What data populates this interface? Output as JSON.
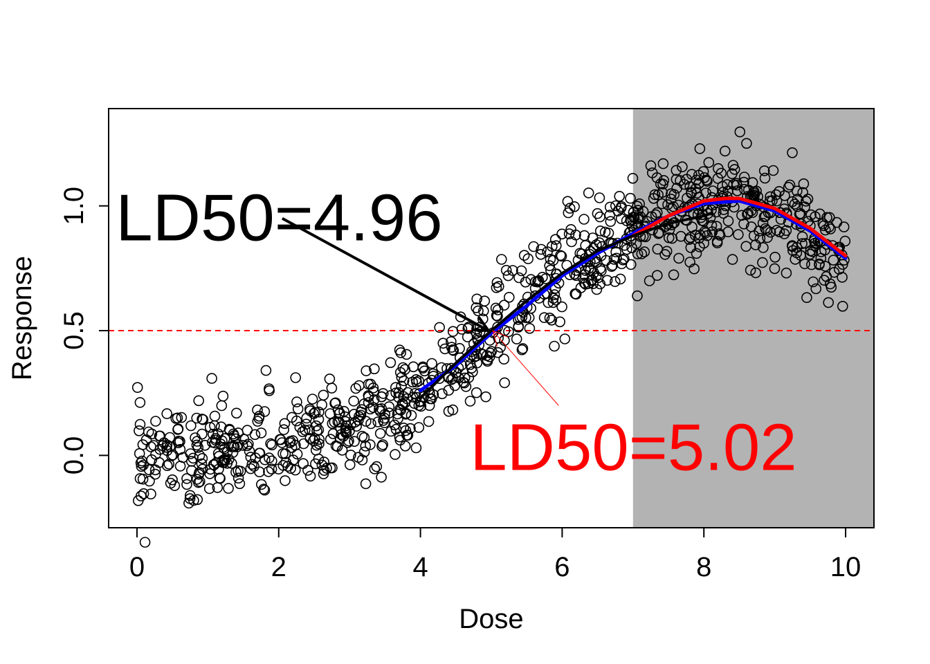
{
  "chart_data": {
    "type": "scatter",
    "title": "",
    "xlabel": "Dose",
    "ylabel": "Response",
    "xlim": [
      -0.4,
      10.4
    ],
    "ylim": [
      -0.29,
      1.39
    ],
    "x_ticks": [
      0,
      2,
      4,
      6,
      8,
      10
    ],
    "x_tick_labels": [
      "0",
      "2",
      "4",
      "6",
      "8",
      "10"
    ],
    "y_ticks": [
      0.0,
      0.5,
      1.0
    ],
    "y_tick_labels": [
      "0.0",
      "0.5",
      "1.0"
    ],
    "grid": false,
    "shaded_region": {
      "x_from": 7,
      "x_to": 10.4,
      "color": "#b3b3b3"
    },
    "reference_line": {
      "y": 0.5,
      "color": "#ff0000",
      "style": "dashed"
    },
    "scatter_points": {
      "description_count": 1000,
      "x_range": [
        0,
        10
      ],
      "y_pattern": [
        [
          0,
          0.0
        ],
        [
          1,
          0.0
        ],
        [
          2,
          0.03
        ],
        [
          3,
          0.1
        ],
        [
          4,
          0.22
        ],
        [
          5,
          0.5
        ],
        [
          6,
          0.75
        ],
        [
          7,
          0.92
        ],
        [
          8,
          1.0
        ],
        [
          8.5,
          1.02
        ],
        [
          9,
          0.97
        ],
        [
          9.5,
          0.88
        ],
        [
          10,
          0.8
        ]
      ],
      "noise_sd": 0.1
    },
    "series": [
      {
        "color": "#0000ff",
        "width": 5,
        "points": [
          [
            4,
            0.26
          ],
          [
            4.5,
            0.36
          ],
          [
            5,
            0.49
          ],
          [
            5.5,
            0.6
          ],
          [
            6,
            0.72
          ],
          [
            6.5,
            0.81
          ],
          [
            7,
            0.89
          ],
          [
            7.5,
            0.96
          ],
          [
            8,
            1.01
          ],
          [
            8.5,
            1.02
          ],
          [
            9,
            0.98
          ],
          [
            9.5,
            0.9
          ],
          [
            10,
            0.79
          ]
        ]
      },
      {
        "color": "#ff0000",
        "width": 5,
        "points": [
          [
            7,
            0.88
          ],
          [
            7.5,
            0.96
          ],
          [
            8,
            1.02
          ],
          [
            8.3,
            1.03
          ],
          [
            8.5,
            1.03
          ],
          [
            9,
            0.99
          ],
          [
            9.5,
            0.91
          ],
          [
            10,
            0.8
          ]
        ]
      },
      {
        "color": "#000000",
        "width": 4,
        "points": [
          [
            4,
            0.23
          ],
          [
            4.5,
            0.37
          ],
          [
            5,
            0.5
          ],
          [
            5.5,
            0.62
          ],
          [
            6,
            0.73
          ],
          [
            6.5,
            0.82
          ],
          [
            7,
            0.88
          ],
          [
            7.5,
            0.93
          ],
          [
            8,
            0.96
          ],
          [
            8.1,
            0.97
          ]
        ]
      }
    ],
    "annotations": [
      {
        "text": "LD50=4.96",
        "color": "#000000",
        "text_x": -0.3,
        "text_y": 0.95,
        "arrow_from": [
          2.05,
          0.95
        ],
        "arrow_to": [
          4.96,
          0.5
        ]
      },
      {
        "text": "LD50=5.02",
        "color": "#ff0000",
        "text_x": 4.7,
        "text_y": 0.03,
        "arrow_from": [
          5.95,
          0.2
        ],
        "arrow_to": [
          5.02,
          0.5
        ]
      }
    ]
  }
}
